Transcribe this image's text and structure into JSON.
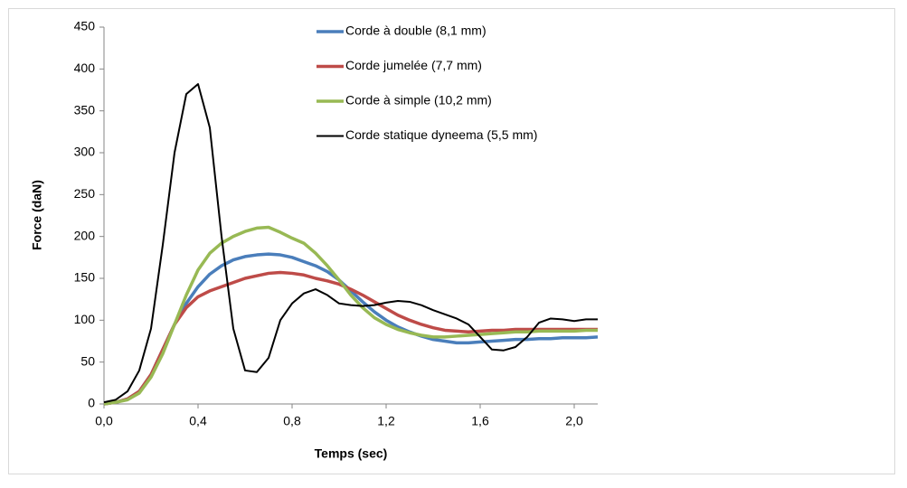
{
  "chart_data": {
    "type": "line",
    "x_label": "Temps (sec)",
    "y_label": "Force (daN)",
    "xlim": [
      0,
      2.1
    ],
    "ylim": [
      0,
      450
    ],
    "xticks": [
      {
        "value": 0,
        "label": "0,0"
      },
      {
        "value": 0.4,
        "label": "0,4"
      },
      {
        "value": 0.8,
        "label": "0,8"
      },
      {
        "value": 1.2,
        "label": "1,2"
      },
      {
        "value": 1.6,
        "label": "1,6"
      },
      {
        "value": 2.0,
        "label": "2,0"
      }
    ],
    "yticks": [
      0,
      50,
      100,
      150,
      200,
      250,
      300,
      350,
      400,
      450
    ],
    "x": [
      0,
      0.05,
      0.1,
      0.15,
      0.2,
      0.25,
      0.3,
      0.35,
      0.4,
      0.45,
      0.5,
      0.55,
      0.6,
      0.65,
      0.7,
      0.75,
      0.8,
      0.85,
      0.9,
      0.95,
      1.0,
      1.05,
      1.1,
      1.15,
      1.2,
      1.25,
      1.3,
      1.35,
      1.4,
      1.45,
      1.5,
      1.55,
      1.6,
      1.65,
      1.7,
      1.75,
      1.8,
      1.85,
      1.9,
      1.95,
      2.0,
      2.05,
      2.1
    ],
    "series": [
      {
        "name": "Corde à double (8,1 mm)",
        "color": "#4a7ebb",
        "values": [
          0,
          2,
          6,
          15,
          35,
          65,
          95,
          120,
          140,
          155,
          165,
          172,
          176,
          178,
          179,
          178,
          175,
          170,
          165,
          158,
          148,
          135,
          122,
          110,
          100,
          92,
          86,
          81,
          77,
          75,
          73,
          73,
          74,
          75,
          76,
          77,
          77,
          78,
          78,
          79,
          79,
          79,
          80
        ]
      },
      {
        "name": "Corde jumelée (7,7 mm)",
        "color": "#be4b48",
        "values": [
          0,
          2,
          6,
          15,
          35,
          65,
          95,
          115,
          128,
          135,
          140,
          145,
          150,
          153,
          156,
          157,
          156,
          154,
          150,
          147,
          143,
          137,
          130,
          122,
          114,
          106,
          100,
          95,
          91,
          88,
          87,
          86,
          87,
          88,
          88,
          89,
          89,
          89,
          89,
          89,
          89,
          89,
          89
        ]
      },
      {
        "name": "Corde à simple (10,2 mm)",
        "color": "#98b954",
        "values": [
          0,
          2,
          5,
          13,
          32,
          60,
          95,
          130,
          160,
          180,
          192,
          200,
          206,
          210,
          211,
          205,
          198,
          192,
          180,
          165,
          148,
          130,
          115,
          103,
          95,
          89,
          85,
          82,
          80,
          80,
          81,
          82,
          83,
          84,
          85,
          86,
          86,
          87,
          87,
          87,
          87,
          88,
          88
        ]
      },
      {
        "name": "Corde statique dyneema (5,5 mm)",
        "color": "#000000",
        "values": [
          2,
          5,
          15,
          40,
          90,
          190,
          300,
          370,
          382,
          330,
          200,
          90,
          40,
          38,
          55,
          100,
          120,
          132,
          137,
          130,
          120,
          118,
          117,
          118,
          121,
          123,
          122,
          118,
          112,
          107,
          102,
          95,
          80,
          65,
          64,
          68,
          80,
          97,
          102,
          101,
          99,
          101,
          101
        ]
      }
    ]
  }
}
